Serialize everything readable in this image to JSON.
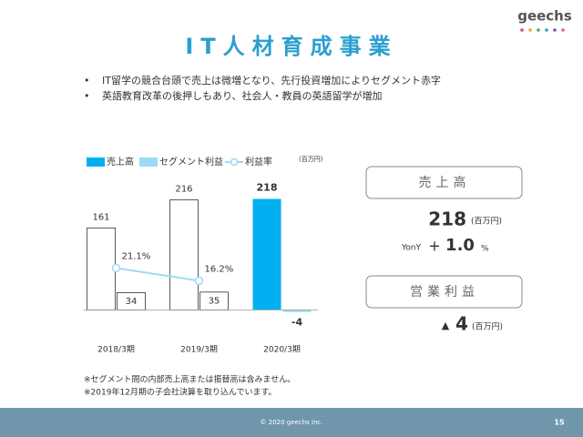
{
  "logo": "geechs",
  "title": "IT人材育成事業",
  "bullets": [
    "IT留学の競合台頭で売上は微増となり、先行投資増加によりセグメント赤字",
    "英語教育改革の後押しもあり、社会人・教員の英語留学が増加"
  ],
  "chart_data": {
    "type": "bar",
    "categories": [
      "2018/3期",
      "2019/3期",
      "2020/3期"
    ],
    "unit": "(百万円)",
    "series": [
      {
        "name": "売上高",
        "color": "#00b0f0",
        "bar_colors": [
          "#ffffff",
          "#ffffff",
          "#00b0f0"
        ],
        "values": [
          161,
          216,
          218
        ]
      },
      {
        "name": "セグメント利益",
        "color": "#9ddaf5",
        "bar_colors": [
          "#ffffff",
          "#ffffff",
          "#9ddaf5"
        ],
        "values": [
          34,
          35,
          -4
        ]
      },
      {
        "name": "利益率",
        "type": "line",
        "axis": "y2",
        "color": "#9ddaf5",
        "values": [
          21.1,
          16.2,
          null
        ],
        "value_labels": [
          "21.1%",
          "16.2%",
          null
        ]
      }
    ],
    "ylim": [
      -10,
      260
    ],
    "y2lim": [
      3,
      56
    ]
  },
  "kpi": {
    "sales_label": "売上高",
    "sales_value": "218",
    "sales_unit": "(百万円)",
    "yony": "YonY",
    "yony_sign": "+",
    "yony_value": "1.0",
    "yony_unit": "%",
    "profit_label": "営業利益",
    "profit_sign": "▲",
    "profit_value": "4",
    "profit_unit": "(百万円)"
  },
  "notes": [
    "※セグメント間の内部売上高または振替高は含みません。",
    "※2019年12月期の子会社決算を取り込んでいます。"
  ],
  "footer": {
    "copyright": "© 2020 geechs inc.",
    "page": "15"
  }
}
